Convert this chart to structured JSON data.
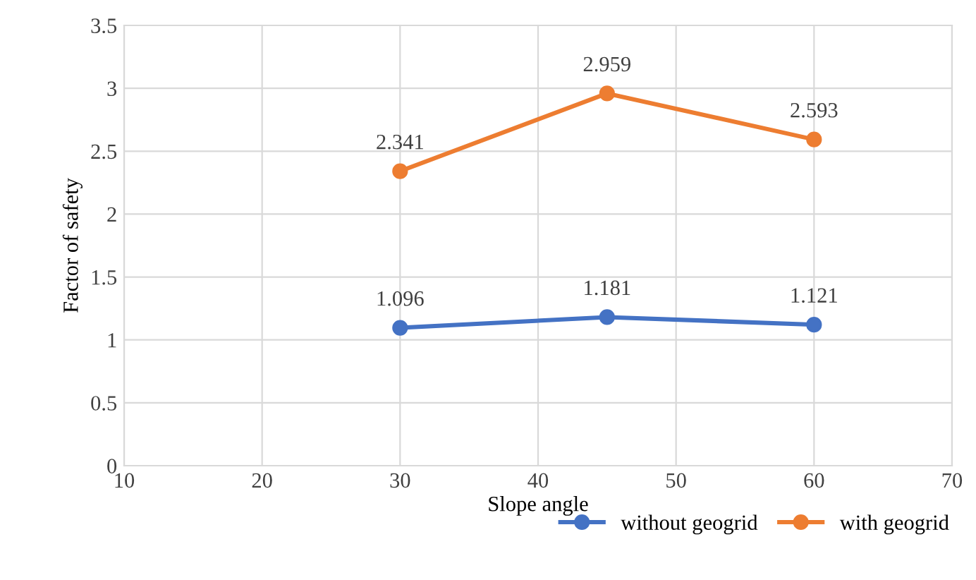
{
  "chart_data": {
    "type": "line",
    "xlabel": "Slope angle",
    "ylabel": "Factor of safety",
    "x": [
      30,
      45,
      60
    ],
    "series": [
      {
        "name": "without geogrid",
        "color": "#4472c4",
        "values": [
          1.096,
          1.181,
          1.121
        ]
      },
      {
        "name": "with geogrid",
        "color": "#ed7d31",
        "values": [
          2.341,
          2.959,
          2.593
        ]
      }
    ],
    "xlim": [
      10,
      70
    ],
    "xticks": [
      10,
      20,
      30,
      40,
      50,
      60,
      70
    ],
    "ylim": [
      0,
      3.5
    ],
    "yticks": [
      0,
      0.5,
      1,
      1.5,
      2,
      2.5,
      3,
      3.5
    ],
    "grid": true,
    "legend": "bottom right",
    "marker": "circle",
    "line_style": "solid",
    "data_labels": true
  }
}
